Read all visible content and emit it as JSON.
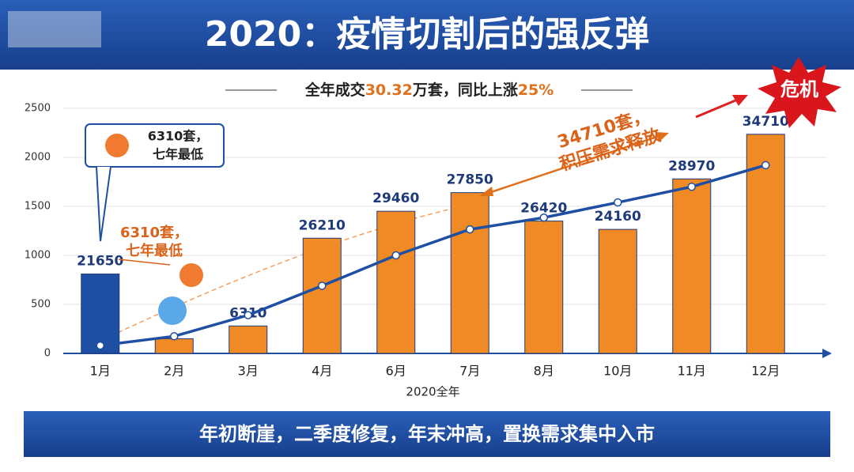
{
  "header": {
    "title": "2020：疫情切割后的强反弹",
    "subtitle": [
      "全年成交",
      "30.32",
      "万套，同比上涨",
      "25%"
    ]
  },
  "chart_data": {
    "type": "bar",
    "categories": [
      "1月",
      "2月",
      "3月",
      "4月",
      "6月",
      "7月",
      "8月",
      "10月",
      "11月",
      "12月"
    ],
    "values": [
      810,
      150,
      280,
      1175,
      1450,
      1640,
      1350,
      1265,
      1780,
      2235
    ],
    "colors": [
      "#1e4fa3",
      "#f08a24",
      "#f08a24",
      "#f08a24",
      "#f08a24",
      "#f08a24",
      "#f08a24",
      "#f08a24",
      "#f08a24",
      "#f08a24"
    ],
    "data_labels": [
      "21650",
      null,
      "6310",
      "26210",
      "29460",
      "27850",
      "26420",
      "24160",
      "28970",
      "34710"
    ],
    "line": {
      "color": "#1e4fa3",
      "values": [
        80,
        175,
        390,
        690,
        1000,
        1265,
        1385,
        1540,
        1700,
        1920
      ]
    },
    "xlabel": "2020全年",
    "ylim": [
      0,
      2500
    ],
    "yticks": [
      0,
      500,
      1000,
      1500,
      2000,
      2500
    ],
    "grid": true
  },
  "annotations": {
    "callout_1": [
      "6310套，",
      "七年最低"
    ],
    "callout_2": [
      "6310套，",
      "七年最低"
    ],
    "arrow_note": [
      "34710套，",
      "积压需求释放"
    ],
    "badge": "危机"
  },
  "footer": "年初断崖，二季度修复，年末冲高，置换需求集中入市"
}
